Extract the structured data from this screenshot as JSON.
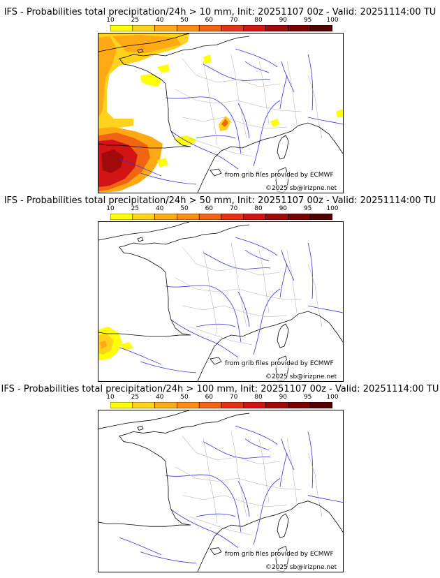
{
  "colorbar": {
    "ticks": [
      "10",
      "25",
      "40",
      "50",
      "60",
      "70",
      "80",
      "90",
      "95",
      "100"
    ],
    "colors": [
      "#ffff00",
      "#ffd21e",
      "#ffaa14",
      "#ff8c14",
      "#f06414",
      "#e63214",
      "#d21414",
      "#a00a0a",
      "#7a0000",
      "#550000"
    ]
  },
  "map_colors": {
    "coastline": "#000000",
    "rivers": "#3333dd",
    "borders": "#aaaaaa"
  },
  "panels": [
    {
      "title": "IFS - Probabilities total precipitation/24h > 10 mm, Init: 20251107 00z - Valid: 20251114:00 TU",
      "source_credit": "from grib files provided by ECMWF",
      "copyright": "©2025 sb@irizpne.net",
      "level": "high"
    },
    {
      "title": "IFS - Probabilities total precipitation/24h > 50 mm, Init: 20251107 00z - Valid: 20251114:00 TU",
      "source_credit": "from grib files provided by ECMWF",
      "copyright": "©2025 sb@irizpne.net",
      "level": "medium"
    },
    {
      "title": "IFS - Probabilities total precipitation/24h > 100 mm, Init: 20251107 00z - Valid: 20251114:00 TU",
      "source_credit": "from grib files provided by ECMWF",
      "copyright": "©2025 sb@irizpne.net",
      "level": "none"
    }
  ]
}
